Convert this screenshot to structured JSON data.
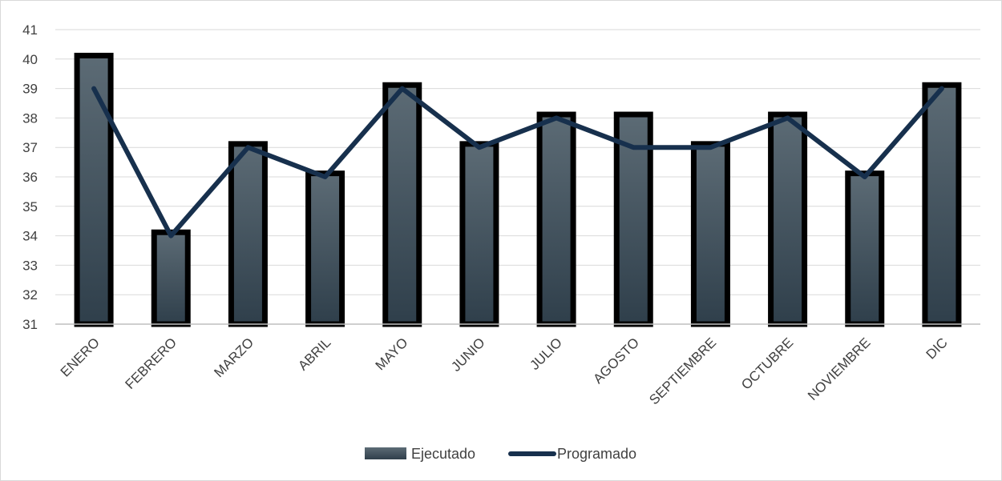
{
  "chart_data": {
    "type": "bar",
    "categories": [
      "ENERO",
      "FEBRERO",
      "MARZO",
      "ABRIL",
      "MAYO",
      "JUNIO",
      "JULIO",
      "AGOSTO",
      "SEPTIEMBRE",
      "OCTUBRE",
      "NOVIEMBRE",
      "DIC"
    ],
    "series": [
      {
        "name": "Ejecutado",
        "type": "bar",
        "values": [
          40.2,
          34.2,
          37.2,
          36.2,
          39.2,
          37.2,
          38.2,
          38.2,
          37.2,
          38.2,
          36.2,
          39.2
        ],
        "color": "#4a5964"
      },
      {
        "name": "Programado",
        "type": "line",
        "values": [
          39,
          34,
          37,
          36,
          39,
          37,
          38,
          37,
          37,
          38,
          36,
          39
        ],
        "color": "#17304d"
      }
    ],
    "title": "",
    "xlabel": "",
    "ylabel": "",
    "ylim": [
      31,
      41
    ],
    "yticks": [
      31,
      32,
      33,
      34,
      35,
      36,
      37,
      38,
      39,
      40,
      41
    ],
    "grid": true,
    "legend_position": "bottom"
  }
}
